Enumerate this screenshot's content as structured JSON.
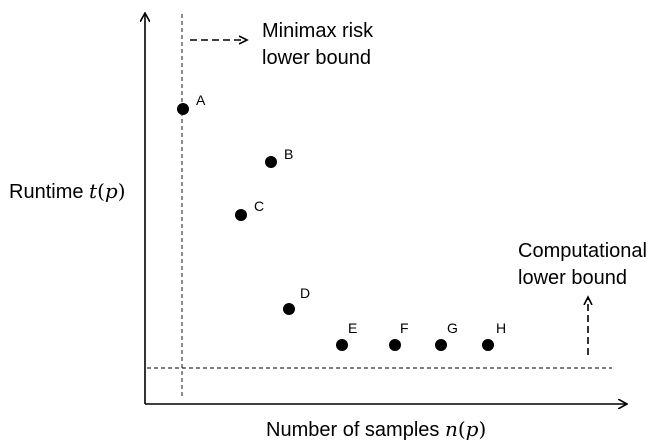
{
  "diagram": {
    "y_axis_label": {
      "prefix": "Runtime ",
      "math_var": "t",
      "math_arg": "p"
    },
    "x_axis_label": {
      "prefix": "Number of samples ",
      "math_var": "n",
      "math_arg": "p"
    },
    "minimax_bound": {
      "line1": "Minimax risk",
      "line2": "lower bound"
    },
    "computational_bound": {
      "line1": "Computational",
      "line2": "lower bound"
    },
    "points": [
      {
        "label": "A"
      },
      {
        "label": "B"
      },
      {
        "label": "C"
      },
      {
        "label": "D"
      },
      {
        "label": "E"
      },
      {
        "label": "F"
      },
      {
        "label": "G"
      },
      {
        "label": "H"
      }
    ],
    "colors": {
      "ink": "#000000",
      "background": "#ffffff"
    }
  }
}
